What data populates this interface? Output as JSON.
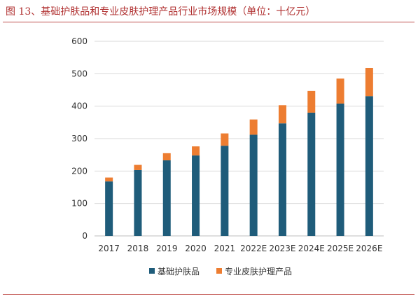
{
  "header": {
    "title": "图 13、基础护肤品和专业皮肤护理产品行业市场规模（单位：十亿元）"
  },
  "colors": {
    "base": "#1f5c7a",
    "professional": "#ed7d31",
    "grid": "#d9d9d9",
    "rule": "#c0504d"
  },
  "chart_data": {
    "type": "bar",
    "stacked": true,
    "categories": [
      "2017",
      "2018",
      "2019",
      "2020",
      "2021",
      "2022E",
      "2023E",
      "2024E",
      "2025E",
      "2026E"
    ],
    "series": [
      {
        "name": "基础护肤品",
        "values": [
          168,
          203,
          233,
          248,
          278,
          312,
          347,
          380,
          408,
          431
        ]
      },
      {
        "name": "专业皮肤护理产品",
        "values": [
          12,
          16,
          22,
          28,
          38,
          47,
          56,
          67,
          77,
          87
        ]
      }
    ],
    "ylim": [
      0,
      600
    ],
    "yticks": [
      0,
      100,
      200,
      300,
      400,
      500,
      600
    ],
    "grid": true,
    "legend": "bottom"
  }
}
